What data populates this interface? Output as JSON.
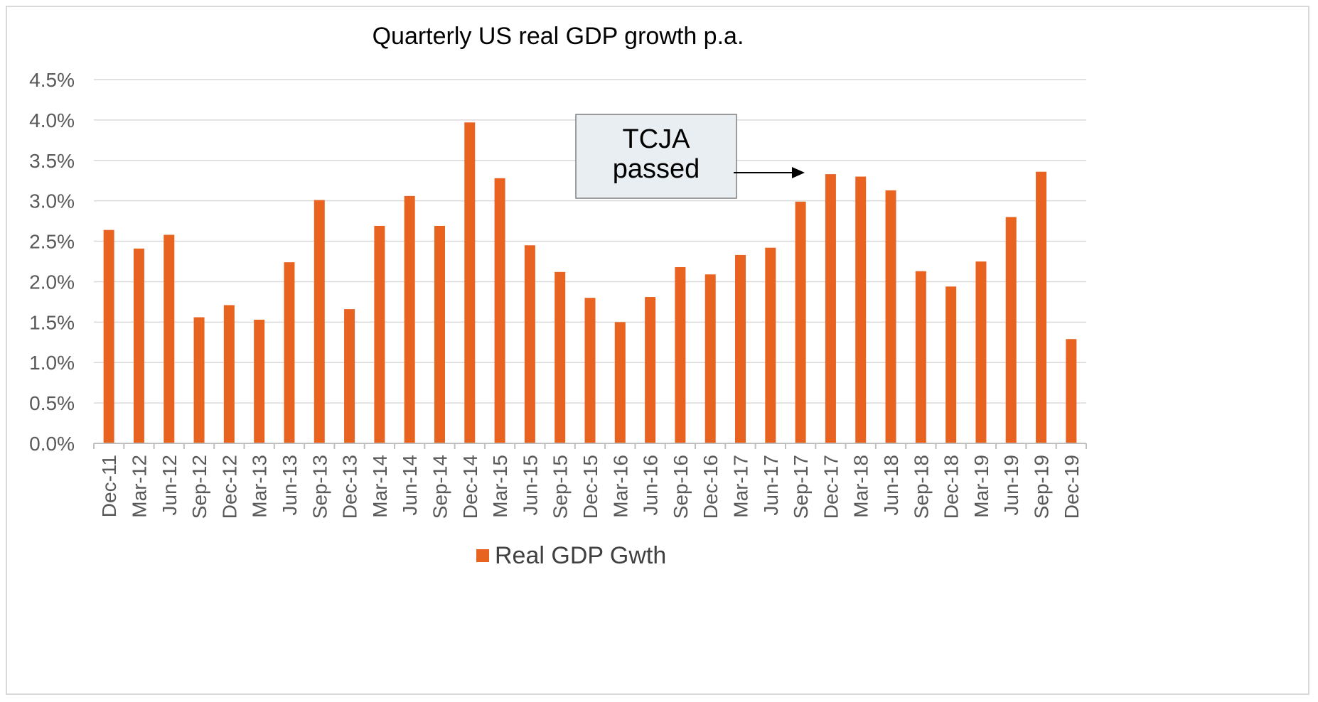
{
  "chart_data": {
    "type": "bar",
    "title": "Quarterly US real GDP growth p.a.",
    "xlabel": "",
    "ylabel": "",
    "ylim": [
      0,
      4.5
    ],
    "y_ticks": [
      "0.0%",
      "0.5%",
      "1.0%",
      "1.5%",
      "2.0%",
      "2.5%",
      "3.0%",
      "3.5%",
      "4.0%",
      "4.5%"
    ],
    "categories": [
      "Dec-11",
      "Mar-12",
      "Jun-12",
      "Sep-12",
      "Dec-12",
      "Mar-13",
      "Jun-13",
      "Sep-13",
      "Dec-13",
      "Mar-14",
      "Jun-14",
      "Sep-14",
      "Dec-14",
      "Mar-15",
      "Jun-15",
      "Sep-15",
      "Dec-15",
      "Mar-16",
      "Jun-16",
      "Sep-16",
      "Dec-16",
      "Mar-17",
      "Jun-17",
      "Sep-17",
      "Dec-17",
      "Mar-18",
      "Jun-18",
      "Sep-18",
      "Dec-18",
      "Mar-19",
      "Jun-19",
      "Sep-19",
      "Dec-19"
    ],
    "series": [
      {
        "name": "Real GDP Gwth",
        "color": "#e8631f",
        "values": [
          2.64,
          2.41,
          2.58,
          1.56,
          1.71,
          1.53,
          2.24,
          3.01,
          1.66,
          2.69,
          3.06,
          2.69,
          3.97,
          3.28,
          2.45,
          2.12,
          1.8,
          1.5,
          1.81,
          2.18,
          2.09,
          2.33,
          2.42,
          2.99,
          3.33,
          3.3,
          3.13,
          2.13,
          1.94,
          2.25,
          2.8,
          3.36,
          1.29
        ]
      }
    ],
    "legend": {
      "position": "bottom",
      "label": "Real GDP Gwth"
    },
    "grid": true,
    "annotation": {
      "line1": "TCJA",
      "line2": "passed",
      "points_to_category": "Sep-17"
    },
    "colors": {
      "bar": "#e8631f",
      "grid": "#d9d9d9",
      "axis": "#bfbfbf",
      "annotation_fill": "#e8eef1"
    }
  }
}
